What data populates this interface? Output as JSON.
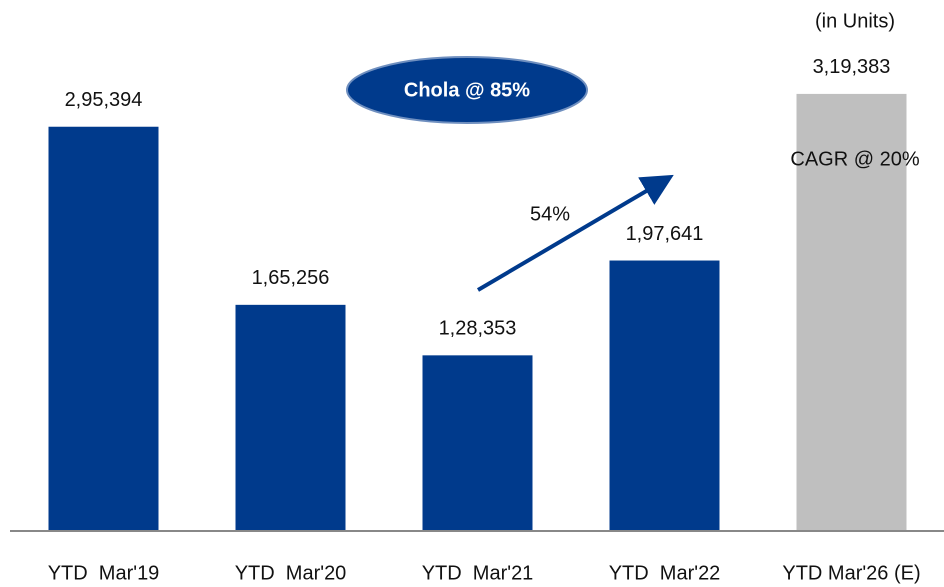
{
  "chart_data": {
    "type": "bar",
    "unit_note": "(in Units)",
    "categories": [
      "YTD  Mar'19",
      "YTD  Mar'20",
      "YTD  Mar'21",
      "YTD  Mar'22",
      "YTD Mar'26 (E)"
    ],
    "values": [
      295394,
      165256,
      128353,
      197641,
      319383
    ],
    "value_labels": [
      "2,95,394",
      "1,65,256",
      "1,28,353",
      "1,97,641",
      "3,19,383"
    ],
    "colors": [
      "#003a8c",
      "#003a8c",
      "#003a8c",
      "#003a8c",
      "#bfbfbf"
    ],
    "ylim": [
      0,
      388000
    ],
    "annotations": [
      "Chola @ 85%",
      "54%",
      "CAGR @ 20%"
    ]
  }
}
